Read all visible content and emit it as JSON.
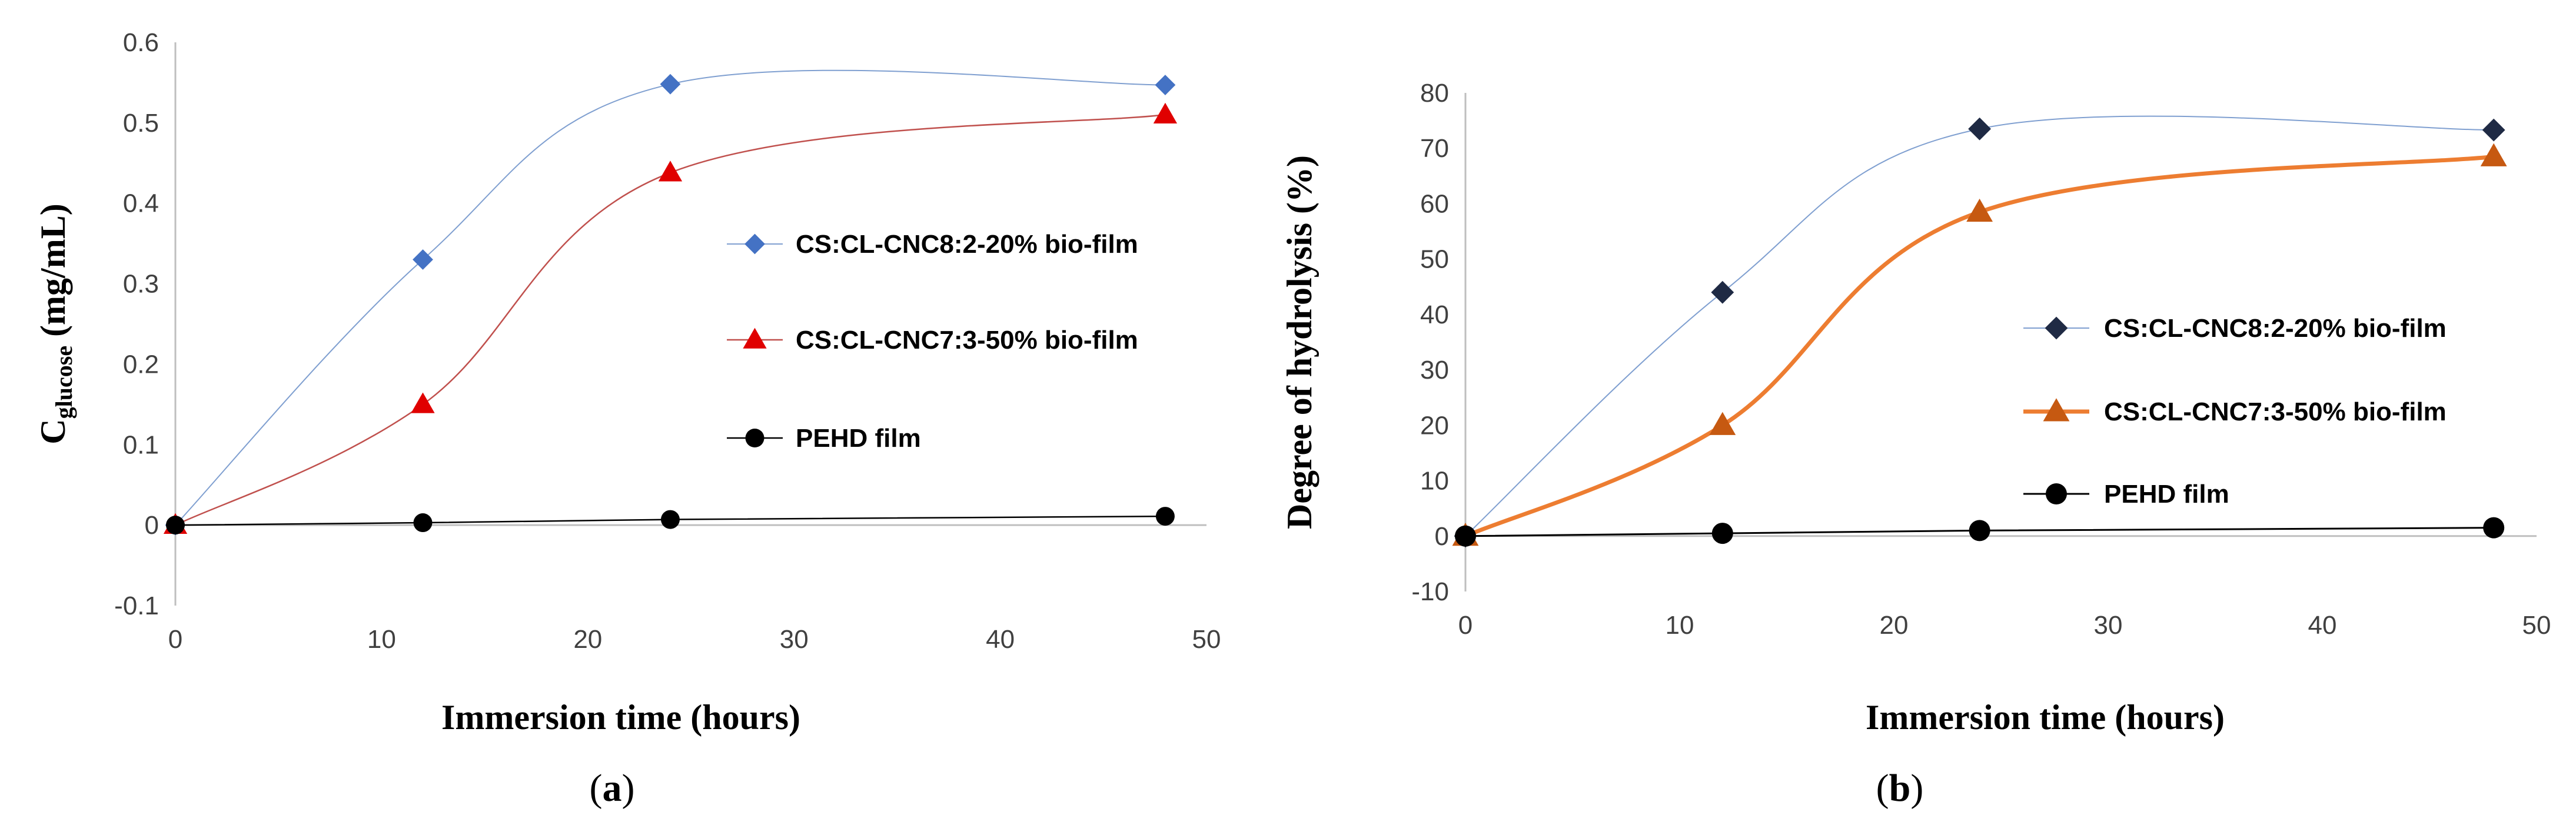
{
  "chart_data": [
    {
      "type": "line",
      "panel_label": "a",
      "xlabel": "Immersion time  (hours)",
      "ylabel": {
        "main": "C",
        "subscript": "glucose",
        "unit": "(mg/mL)"
      },
      "xlim": [
        0,
        50
      ],
      "ylim": [
        -0.1,
        0.6
      ],
      "xticks": [
        0,
        10,
        20,
        30,
        40,
        50
      ],
      "yticks": [
        -0.1,
        0,
        0.1,
        0.2,
        0.3,
        0.4,
        0.5,
        0.6
      ],
      "ytick_labels": [
        "-0.1",
        "0",
        "0.1",
        "0.2",
        "0.3",
        "0.4",
        "0.5",
        "0.6"
      ],
      "x": [
        0,
        12,
        24,
        48
      ],
      "series": [
        {
          "name": "CS:CL-CNC8:2-20% bio-film",
          "values": [
            0,
            0.33,
            0.548,
            0.547
          ],
          "color": "#4472c4",
          "marker": "diamond",
          "line_color": "#7f9fd0"
        },
        {
          "name": "CS:CL-CNC7:3-50% bio-film",
          "values": [
            0,
            0.15,
            0.438,
            0.51
          ],
          "color": "#e00000",
          "marker": "triangle",
          "line_color": "#c0504d"
        },
        {
          "name": "PEHD film",
          "values": [
            0,
            0.003,
            0.007,
            0.011
          ],
          "color": "#000000",
          "marker": "circle",
          "line_color": "#000000"
        }
      ],
      "legend_position": "center-right"
    },
    {
      "type": "line",
      "panel_label": "b",
      "xlabel": "Immersion time  (hours)",
      "ylabel": "Degree of hydrolysis (%)",
      "xlim": [
        0,
        50
      ],
      "ylim": [
        -10,
        80
      ],
      "xticks": [
        0,
        10,
        20,
        30,
        40,
        50
      ],
      "yticks": [
        -10,
        0,
        10,
        20,
        30,
        40,
        50,
        60,
        70,
        80
      ],
      "ytick_labels": [
        "-10",
        "0",
        "10",
        "20",
        "30",
        "40",
        "50",
        "60",
        "70",
        "80"
      ],
      "x": [
        0,
        12,
        24,
        48
      ],
      "series": [
        {
          "name": "CS:CL-CNC8:2-20% bio-film",
          "values": [
            0,
            44,
            73.5,
            73.3
          ],
          "color": "#1f2a44",
          "marker": "diamond",
          "line_color": "#7f9fd0"
        },
        {
          "name": "CS:CL-CNC7:3-50% bio-film",
          "values": [
            0,
            20,
            58.5,
            68.5
          ],
          "color": "#c65911",
          "marker": "triangle",
          "line_color": "#ed7d31"
        },
        {
          "name": "PEHD film",
          "values": [
            0,
            0.5,
            1,
            1.5
          ],
          "color": "#000000",
          "marker": "circle",
          "line_color": "#000000"
        }
      ],
      "legend_position": "center-right"
    }
  ]
}
